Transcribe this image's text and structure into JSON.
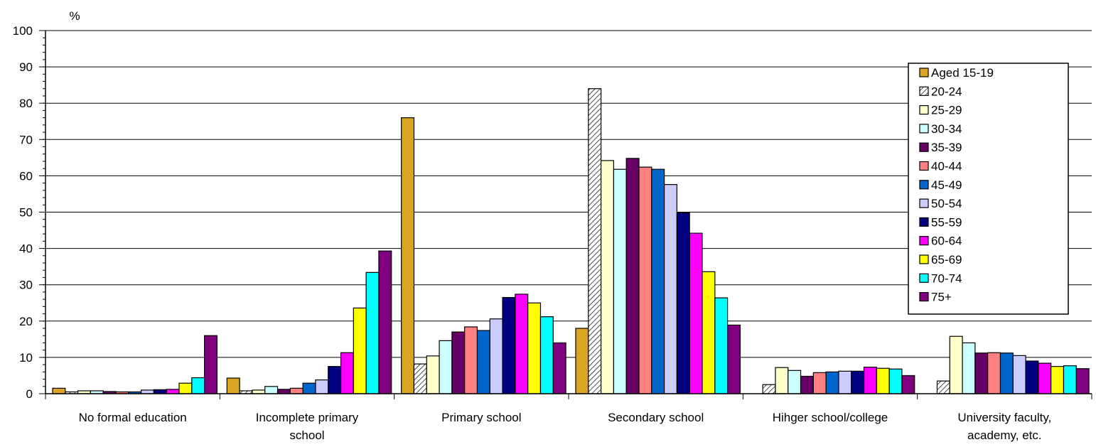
{
  "chart_data": {
    "type": "bar",
    "ylabel": "%",
    "ylim": [
      0,
      100
    ],
    "yticks": [
      0,
      10,
      20,
      30,
      40,
      50,
      60,
      70,
      80,
      90,
      100
    ],
    "grid": true,
    "legend_position": "top-right",
    "categories": [
      [
        "No formal education"
      ],
      [
        "Incomplete primary",
        "school"
      ],
      [
        "Primary school"
      ],
      [
        "Secondary school"
      ],
      [
        "Hihger school/college"
      ],
      [
        "University faculty,",
        "academy, etc."
      ]
    ],
    "series": [
      {
        "name": "Aged 15-19",
        "color": "#DAA520",
        "values": [
          1.5,
          4.3,
          76.0,
          18.0,
          0,
          0
        ]
      },
      {
        "name": "20-24",
        "color": "hatch",
        "values": [
          0.5,
          0.8,
          8.2,
          84.0,
          2.5,
          3.5
        ]
      },
      {
        "name": "25-29",
        "color": "#FFFFCC",
        "values": [
          0.8,
          1.0,
          10.4,
          64.2,
          7.2,
          15.8
        ]
      },
      {
        "name": "30-34",
        "color": "#CCFFFF",
        "values": [
          0.8,
          2.0,
          14.6,
          61.8,
          6.4,
          14.0
        ]
      },
      {
        "name": "35-39",
        "color": "#660066",
        "values": [
          0.6,
          1.2,
          17.0,
          64.8,
          4.8,
          11.2
        ]
      },
      {
        "name": "40-44",
        "color": "#FF8080",
        "values": [
          0.5,
          1.5,
          18.4,
          62.4,
          5.8,
          11.3
        ]
      },
      {
        "name": "45-49",
        "color": "#0066CC",
        "values": [
          0.5,
          2.9,
          17.4,
          61.8,
          6.0,
          11.2
        ]
      },
      {
        "name": "50-54",
        "color": "#CCCCFF",
        "values": [
          1.0,
          3.8,
          20.6,
          57.6,
          6.2,
          10.5
        ]
      },
      {
        "name": "55-59",
        "color": "#000080",
        "values": [
          1.1,
          7.5,
          26.5,
          49.8,
          6.2,
          9.0
        ]
      },
      {
        "name": "60-64",
        "color": "#FF00FF",
        "values": [
          1.2,
          11.3,
          27.4,
          44.2,
          7.3,
          8.4
        ]
      },
      {
        "name": "65-69",
        "color": "#FFFF00",
        "values": [
          2.9,
          23.6,
          25.0,
          33.6,
          7.0,
          7.5
        ]
      },
      {
        "name": "70-74",
        "color": "#00FFFF",
        "values": [
          4.4,
          33.4,
          21.2,
          26.4,
          6.8,
          7.7
        ]
      },
      {
        "name": "75+",
        "color": "#800080",
        "values": [
          16.0,
          39.3,
          14.0,
          18.9,
          5.0,
          6.9
        ]
      }
    ]
  }
}
